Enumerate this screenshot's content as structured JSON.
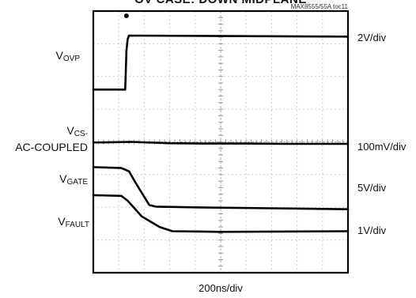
{
  "chart_data": {
    "type": "line",
    "title": "OV CASE: DOWN MIDPLANE",
    "reference": "MAX8555/55A toc11",
    "xlabel": "200ns/div",
    "grid": true,
    "divisions": {
      "x": 10,
      "y": 8
    },
    "xlim": [
      0,
      10
    ],
    "traces": [
      {
        "name": "V_OVP",
        "label_main": "V",
        "label_sub": "OVP",
        "scale": "2V/div",
        "x": [
          0,
          1.25,
          1.3,
          1.35,
          1.4,
          10
        ],
        "y": [
          5.6,
          5.6,
          6.8,
          7.15,
          7.25,
          7.22
        ]
      },
      {
        "name": "V_CS-AC-COUPLED",
        "label_main": "V",
        "label_sub": "CS-",
        "label_line2": "AC-COUPLED",
        "scale": "100mV/div",
        "x": [
          0,
          1.5,
          3.0,
          4.5,
          6.0,
          7.5,
          10
        ],
        "y": [
          3.98,
          4.0,
          3.96,
          3.95,
          3.95,
          3.94,
          3.94
        ]
      },
      {
        "name": "V_GATE",
        "label_main": "V",
        "label_sub": "GATE",
        "scale": "5V/div",
        "x": [
          0,
          1.1,
          1.4,
          1.7,
          2.2,
          2.45,
          4.0,
          7.0,
          10
        ],
        "y": [
          3.23,
          3.2,
          3.1,
          2.7,
          2.07,
          2.02,
          2.0,
          1.97,
          1.94
        ]
      },
      {
        "name": "V_FAULT",
        "label_main": "V",
        "label_sub": "FAULT",
        "scale": "1V/div",
        "x": [
          0,
          1.1,
          1.35,
          1.9,
          2.6,
          3.1,
          5.0,
          10
        ],
        "y": [
          2.37,
          2.35,
          2.2,
          1.72,
          1.4,
          1.27,
          1.25,
          1.27
        ]
      }
    ]
  }
}
